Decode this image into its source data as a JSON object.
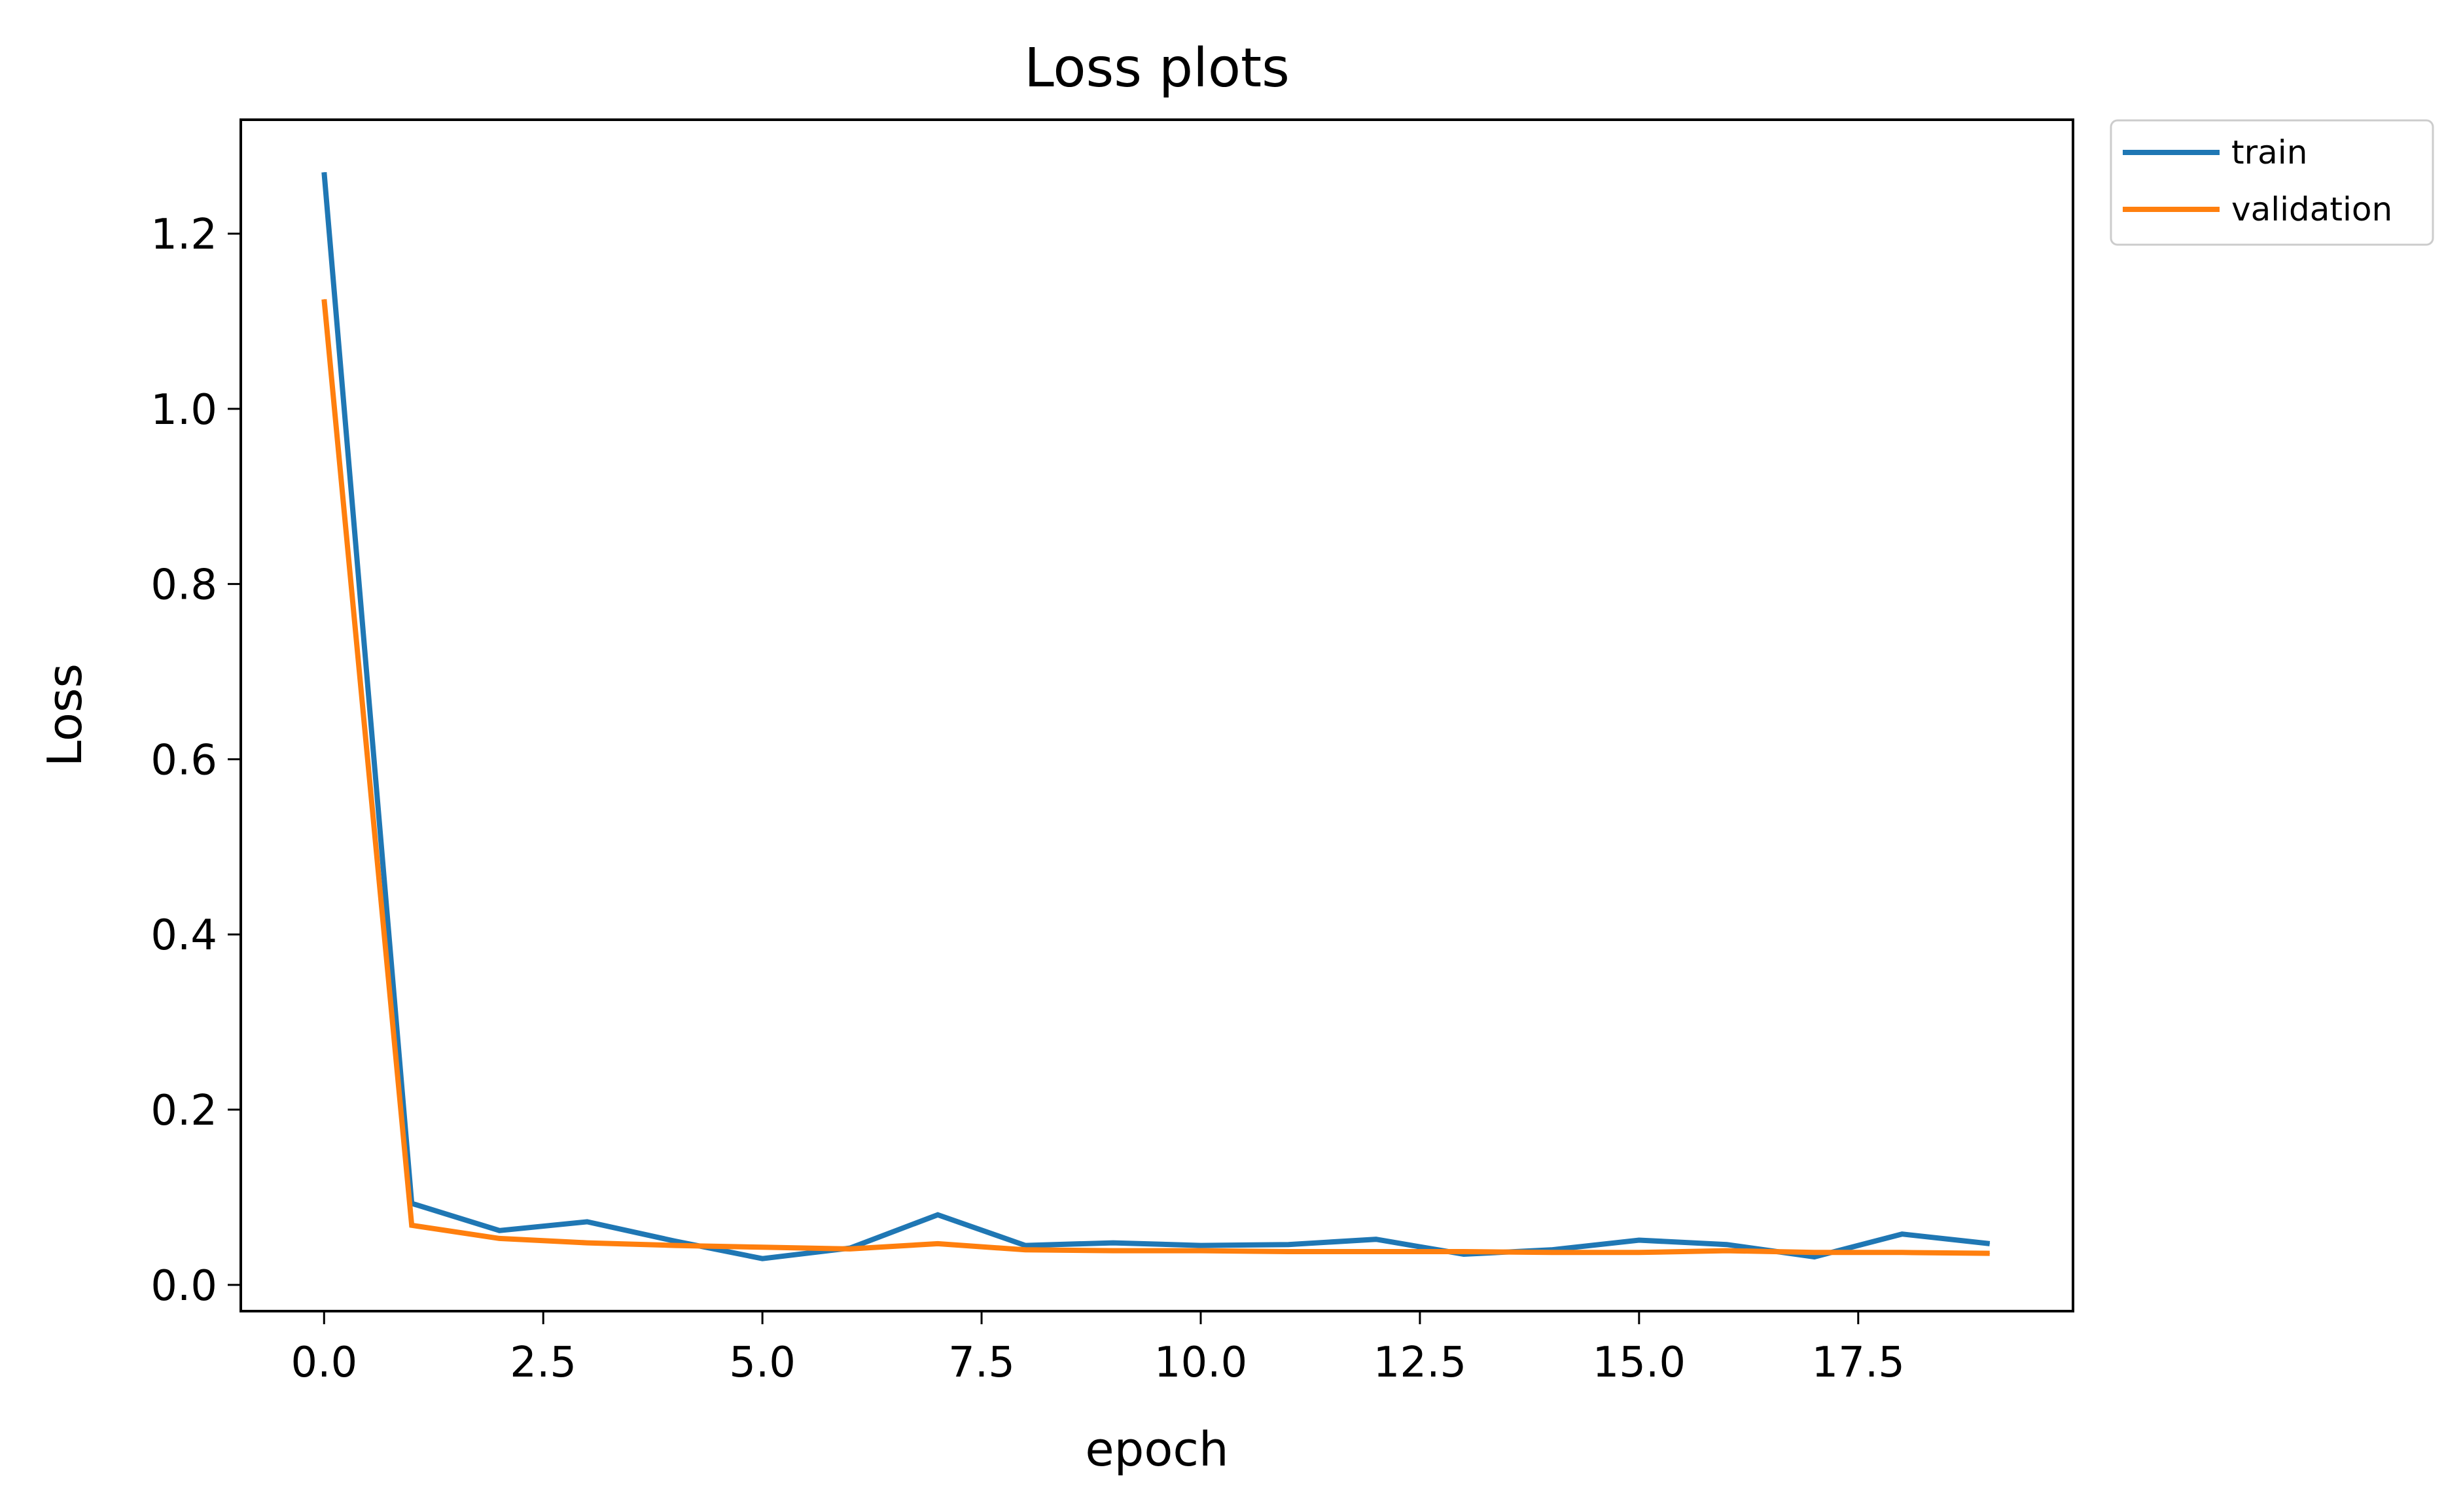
{
  "chart_data": {
    "type": "line",
    "title": "Loss plots",
    "xlabel": "epoch",
    "ylabel": "Loss",
    "xlim": [
      -0.95,
      19.95
    ],
    "ylim": [
      -0.03,
      1.33
    ],
    "xticks": [
      0,
      2.5,
      5,
      7.5,
      10,
      12.5,
      15,
      17.5
    ],
    "xtick_labels": [
      "0.0",
      "2.5",
      "5.0",
      "7.5",
      "10.0",
      "12.5",
      "15.0",
      "17.5"
    ],
    "yticks": [
      0,
      0.2,
      0.4,
      0.6,
      0.8,
      1.0,
      1.2
    ],
    "ytick_labels": [
      "0.0",
      "0.2",
      "0.4",
      "0.6",
      "0.8",
      "1.0",
      "1.2"
    ],
    "grid": false,
    "legend_position": "outside-top-right",
    "x": [
      0,
      1,
      2,
      3,
      4,
      5,
      6,
      7,
      8,
      9,
      10,
      11,
      12,
      13,
      14,
      15,
      16,
      17,
      18,
      19
    ],
    "series": [
      {
        "name": "train",
        "color": "#1f77b4",
        "values": [
          1.27,
          0.093,
          0.062,
          0.072,
          0.05,
          0.03,
          0.042,
          0.08,
          0.045,
          0.048,
          0.045,
          0.046,
          0.052,
          0.035,
          0.04,
          0.051,
          0.046,
          0.032,
          0.058,
          0.047
        ]
      },
      {
        "name": "validation",
        "color": "#ff7f0e",
        "values": [
          1.125,
          0.068,
          0.053,
          0.048,
          0.045,
          0.043,
          0.041,
          0.047,
          0.04,
          0.039,
          0.039,
          0.038,
          0.038,
          0.038,
          0.037,
          0.037,
          0.039,
          0.037,
          0.037,
          0.036
        ]
      }
    ]
  }
}
